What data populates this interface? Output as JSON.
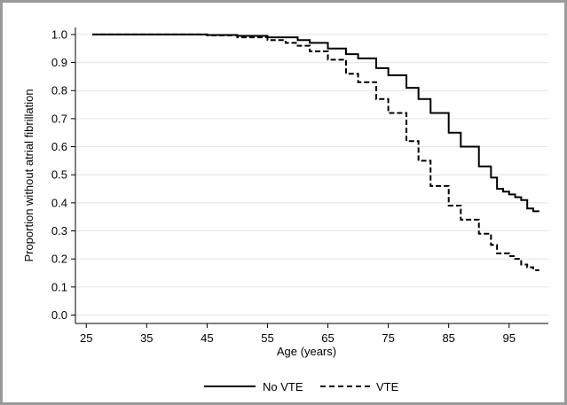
{
  "chart_data": {
    "type": "line",
    "title": "",
    "xlabel": "Age (years)",
    "ylabel": "Proportion without atrial fibrillation",
    "xlim": [
      25,
      100
    ],
    "ylim": [
      0,
      1.0
    ],
    "x_ticks": [
      25,
      35,
      45,
      55,
      65,
      75,
      85,
      95
    ],
    "y_ticks": [
      0.0,
      0.1,
      0.2,
      0.3,
      0.4,
      0.5,
      0.6,
      0.7,
      0.8,
      0.9,
      1.0
    ],
    "y_tick_labels": [
      "0.0",
      "0.1",
      "0.2",
      "0.3",
      "0.4",
      "0.5",
      "0.6",
      "0.7",
      "0.8",
      "0.9",
      "1.0"
    ],
    "grid": "horizontal",
    "legend_position": "bottom",
    "series": [
      {
        "name": "No VTE",
        "style": "solid",
        "x": [
          26,
          40,
          45,
          50,
          55,
          60,
          62,
          65,
          68,
          70,
          73,
          75,
          78,
          80,
          82,
          85,
          87,
          90,
          92,
          93,
          94,
          95,
          96,
          97,
          98,
          99,
          100
        ],
        "y": [
          1.0,
          1.0,
          0.998,
          0.995,
          0.99,
          0.98,
          0.97,
          0.95,
          0.93,
          0.915,
          0.88,
          0.855,
          0.81,
          0.77,
          0.72,
          0.65,
          0.6,
          0.53,
          0.49,
          0.45,
          0.44,
          0.43,
          0.42,
          0.41,
          0.38,
          0.37,
          0.37
        ]
      },
      {
        "name": "VTE",
        "style": "dashed",
        "x": [
          26,
          40,
          45,
          50,
          55,
          58,
          60,
          62,
          65,
          68,
          70,
          73,
          75,
          78,
          80,
          82,
          85,
          87,
          90,
          92,
          93,
          94,
          95,
          96,
          97,
          98,
          99,
          100
        ],
        "y": [
          1.0,
          1.0,
          0.997,
          0.99,
          0.98,
          0.97,
          0.96,
          0.94,
          0.91,
          0.86,
          0.83,
          0.77,
          0.72,
          0.62,
          0.55,
          0.46,
          0.39,
          0.34,
          0.29,
          0.25,
          0.22,
          0.22,
          0.21,
          0.2,
          0.18,
          0.17,
          0.16,
          0.16
        ]
      }
    ]
  }
}
